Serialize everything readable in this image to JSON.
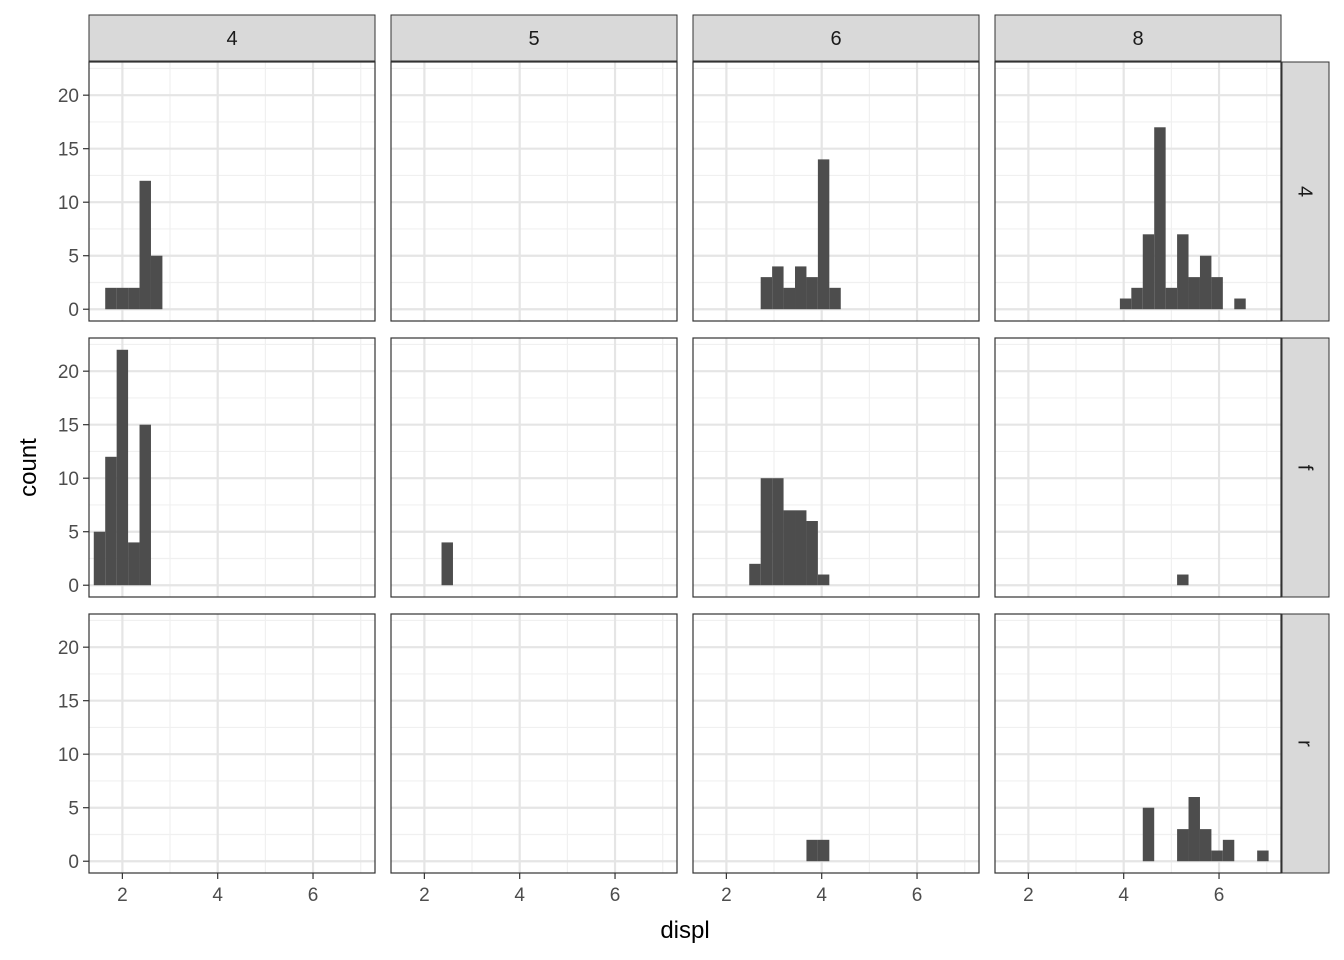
{
  "chart_data": {
    "type": "bar",
    "subtype": "faceted-histogram",
    "xlabel": "displ",
    "ylabel": "count",
    "xlim": [
      1.3,
      7.3
    ],
    "ylim": [
      -1.1,
      23.1
    ],
    "x_ticks": [
      2,
      4,
      6
    ],
    "y_ticks": [
      0,
      5,
      10,
      15,
      20
    ],
    "x_tick_labels": [
      "2",
      "4",
      "6"
    ],
    "y_tick_labels": [
      "0",
      "5",
      "10",
      "15",
      "20"
    ],
    "bin_width": 0.24,
    "column_facets": [
      "4",
      "5",
      "6",
      "8"
    ],
    "row_facets": [
      "4",
      "f",
      "r"
    ],
    "grid": true,
    "bar_color": "#4d4d4d",
    "panels": [
      {
        "col": "4",
        "row": "4",
        "bars": [
          {
            "x": 1.76,
            "count": 2
          },
          {
            "x": 2.0,
            "count": 2
          },
          {
            "x": 2.24,
            "count": 2
          },
          {
            "x": 2.48,
            "count": 12
          },
          {
            "x": 2.72,
            "count": 5
          }
        ]
      },
      {
        "col": "5",
        "row": "4",
        "bars": []
      },
      {
        "col": "6",
        "row": "4",
        "bars": [
          {
            "x": 2.84,
            "count": 3
          },
          {
            "x": 3.08,
            "count": 4
          },
          {
            "x": 3.32,
            "count": 2
          },
          {
            "x": 3.56,
            "count": 4
          },
          {
            "x": 3.8,
            "count": 3
          },
          {
            "x": 4.04,
            "count": 14
          },
          {
            "x": 4.28,
            "count": 2
          }
        ]
      },
      {
        "col": "8",
        "row": "4",
        "bars": [
          {
            "x": 4.04,
            "count": 1
          },
          {
            "x": 4.28,
            "count": 2
          },
          {
            "x": 4.52,
            "count": 7
          },
          {
            "x": 4.76,
            "count": 17
          },
          {
            "x": 5.0,
            "count": 2
          },
          {
            "x": 5.24,
            "count": 7
          },
          {
            "x": 5.48,
            "count": 3
          },
          {
            "x": 5.72,
            "count": 5
          },
          {
            "x": 5.96,
            "count": 3
          },
          {
            "x": 6.44,
            "count": 1
          }
        ]
      },
      {
        "col": "4",
        "row": "f",
        "bars": [
          {
            "x": 1.52,
            "count": 5
          },
          {
            "x": 1.76,
            "count": 12
          },
          {
            "x": 2.0,
            "count": 22
          },
          {
            "x": 2.24,
            "count": 4
          },
          {
            "x": 2.48,
            "count": 15
          }
        ]
      },
      {
        "col": "5",
        "row": "f",
        "bars": [
          {
            "x": 2.48,
            "count": 4
          }
        ]
      },
      {
        "col": "6",
        "row": "f",
        "bars": [
          {
            "x": 2.6,
            "count": 2
          },
          {
            "x": 2.84,
            "count": 10
          },
          {
            "x": 3.08,
            "count": 10
          },
          {
            "x": 3.32,
            "count": 7
          },
          {
            "x": 3.56,
            "count": 7
          },
          {
            "x": 3.8,
            "count": 6
          },
          {
            "x": 4.04,
            "count": 1
          }
        ]
      },
      {
        "col": "8",
        "row": "f",
        "bars": [
          {
            "x": 5.24,
            "count": 1
          }
        ]
      },
      {
        "col": "4",
        "row": "r",
        "bars": []
      },
      {
        "col": "5",
        "row": "r",
        "bars": []
      },
      {
        "col": "6",
        "row": "r",
        "bars": [
          {
            "x": 3.8,
            "count": 2
          },
          {
            "x": 4.04,
            "count": 2
          }
        ]
      },
      {
        "col": "8",
        "row": "r",
        "bars": [
          {
            "x": 4.52,
            "count": 5
          },
          {
            "x": 5.24,
            "count": 3
          },
          {
            "x": 5.48,
            "count": 6
          },
          {
            "x": 5.72,
            "count": 3
          },
          {
            "x": 5.96,
            "count": 1
          },
          {
            "x": 6.2,
            "count": 2
          },
          {
            "x": 6.92,
            "count": 1
          }
        ]
      }
    ]
  }
}
